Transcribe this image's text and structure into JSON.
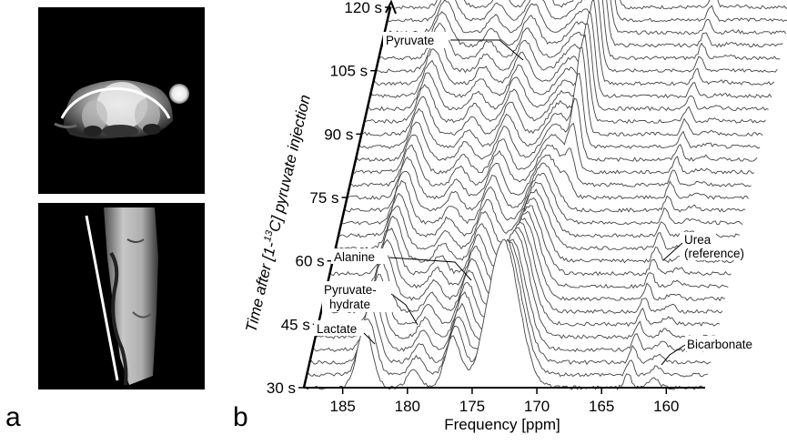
{
  "panels": {
    "a_label": "a",
    "b_label": "b"
  },
  "chart_data": {
    "type": "line",
    "subtype": "stacked 3D waterfall spectra",
    "xlabel": "Frequency [ppm]",
    "ylabel": "Time after [1-13C] pyruvate injection",
    "ylabel_parts": {
      "before": "Time after [1-",
      "superscript": "13",
      "after": "C] pyruvate injection"
    },
    "x_axis_reversed": true,
    "xlim": [
      188,
      157
    ],
    "x_ticks": [
      "185",
      "180",
      "175",
      "170",
      "165",
      "160"
    ],
    "x_tick_values": [
      185,
      180,
      175,
      170,
      165,
      160
    ],
    "time_ticks": [
      "30 s",
      "45 s",
      "60 s",
      "75 s",
      "90 s",
      "105 s",
      "120 s"
    ],
    "time_tick_values": [
      30,
      45,
      60,
      75,
      90,
      105,
      120
    ],
    "time_range_s": [
      30,
      120
    ],
    "n_spectra": 31,
    "annotations": [
      "Pyruvate",
      "Alanine",
      "Pyruvate-",
      "hydrate",
      "Lactate",
      "Urea",
      "(reference)",
      "Bicarbonate"
    ],
    "peaks": [
      {
        "name": "Pyruvate",
        "ppm": 171.0,
        "relative_height": 1.0
      },
      {
        "name": "Alanine",
        "ppm": 176.5,
        "relative_height": 0.32
      },
      {
        "name": "Pyruvate-hydrate",
        "ppm": 179.5,
        "relative_height": 0.12
      },
      {
        "name": "Lactate",
        "ppm": 183.3,
        "relative_height": 0.38
      },
      {
        "name": "Urea (reference)",
        "ppm": 163.0,
        "relative_height": 0.1
      },
      {
        "name": "Bicarbonate",
        "ppm": 161.0,
        "relative_height": 0.06
      }
    ],
    "grid": false,
    "legend": "none",
    "line_color": "#444444"
  }
}
